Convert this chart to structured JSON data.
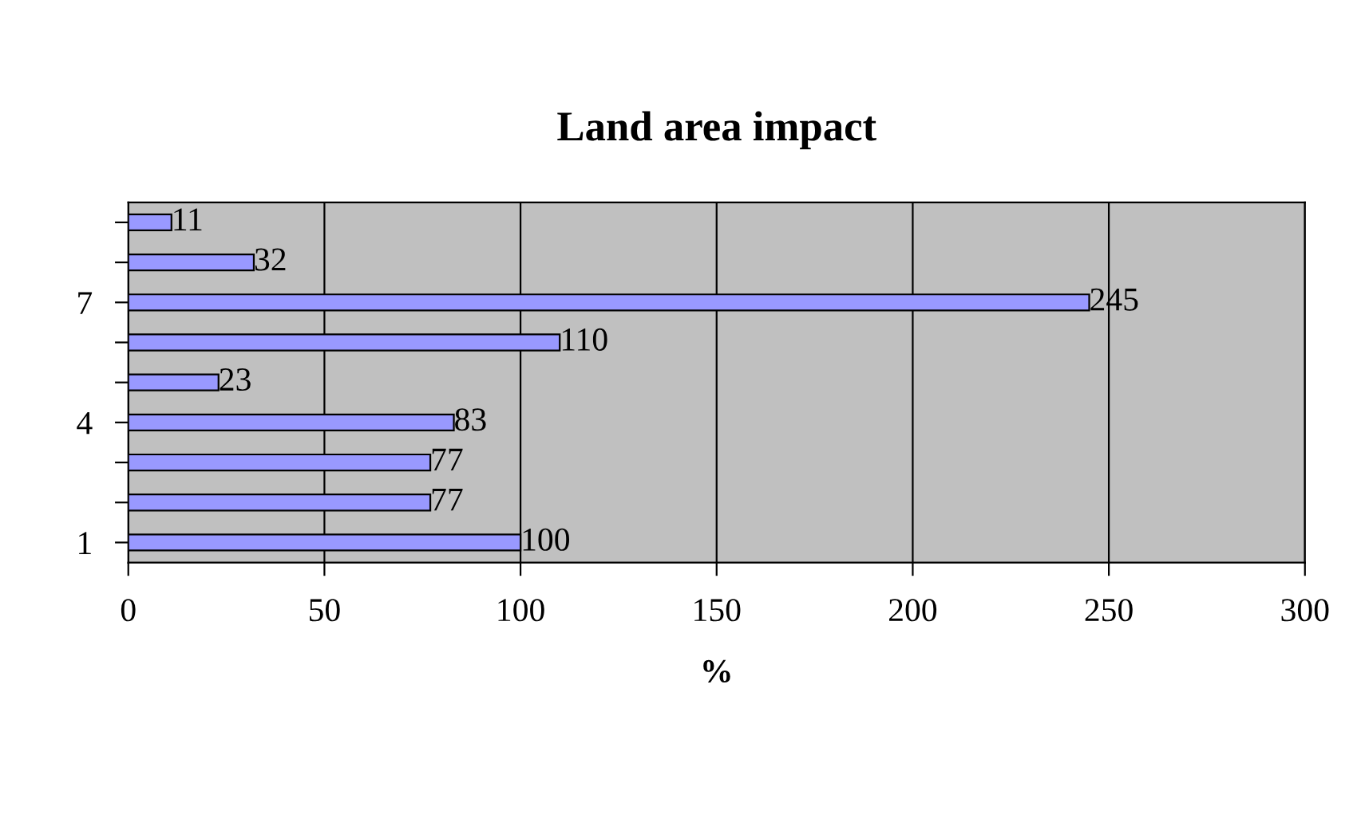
{
  "chart_data": {
    "type": "bar",
    "orientation": "horizontal",
    "title": "Land area impact",
    "xlabel": "%",
    "categories": [
      null,
      null,
      "7",
      null,
      null,
      "4",
      null,
      null,
      "1"
    ],
    "values": [
      11,
      32,
      245,
      110,
      23,
      83,
      77,
      77,
      100
    ],
    "color": "#9999ff",
    "xlim": [
      0,
      300
    ],
    "xticks": [
      0,
      50,
      100,
      150,
      200,
      250,
      300
    ],
    "grid": "x",
    "data_labels": true
  }
}
